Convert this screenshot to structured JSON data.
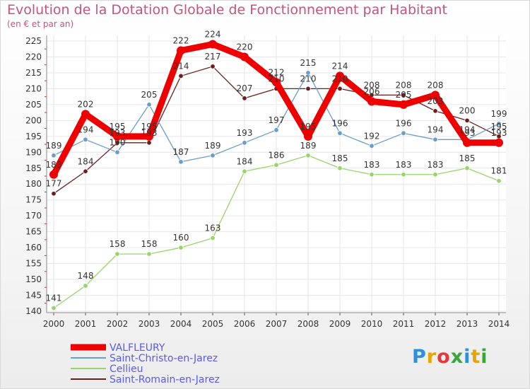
{
  "header": {
    "title": "Evolution de la Dotation Globale de Fonctionnement par Habitant",
    "subtitle": "(en € et par an)"
  },
  "logo": {
    "text": "Proxiti",
    "colors": [
      "#2f8fd8",
      "#e8a400",
      "#e23a3a",
      "#3aa63a",
      "#2f8fd8",
      "#e8a400",
      "#3aa63a"
    ]
  },
  "chart_data": {
    "type": "line",
    "x": [
      "2000",
      "2001",
      "2002",
      "2003",
      "2004",
      "2005",
      "2006",
      "2007",
      "2008",
      "2009",
      "2010",
      "2011",
      "2012",
      "2013",
      "2014"
    ],
    "ylim": [
      140,
      225
    ],
    "yticks": [
      140,
      145,
      150,
      155,
      160,
      165,
      170,
      175,
      180,
      185,
      190,
      195,
      200,
      205,
      210,
      215,
      220,
      225
    ],
    "grid": true,
    "legend_position": "bottom-left",
    "series": [
      {
        "name": "VALFLEURY",
        "color": "#ee0000",
        "values": [
          183,
          202,
          195,
          195,
          222,
          224,
          220,
          212,
          195,
          214,
          206,
          205,
          208,
          193,
          193
        ]
      },
      {
        "name": "Saint-Christo-en-Jarez",
        "color": "#6a9dcc",
        "values": [
          189,
          194,
          190,
          205,
          187,
          189,
          193,
          197,
          215,
          196,
          192,
          196,
          194,
          194,
          199
        ]
      },
      {
        "name": "Cellieu",
        "color": "#98d46a",
        "values": [
          141,
          148,
          158,
          158,
          160,
          163,
          184,
          186,
          189,
          185,
          183,
          183,
          183,
          185,
          181
        ]
      },
      {
        "name": "Saint-Romain-en-Jarez",
        "color": "#6b1e1e",
        "values": [
          177,
          184,
          193,
          193,
          214,
          217,
          207,
          210,
          210,
          210,
          208,
          208,
          203,
          200,
          195
        ]
      }
    ]
  }
}
